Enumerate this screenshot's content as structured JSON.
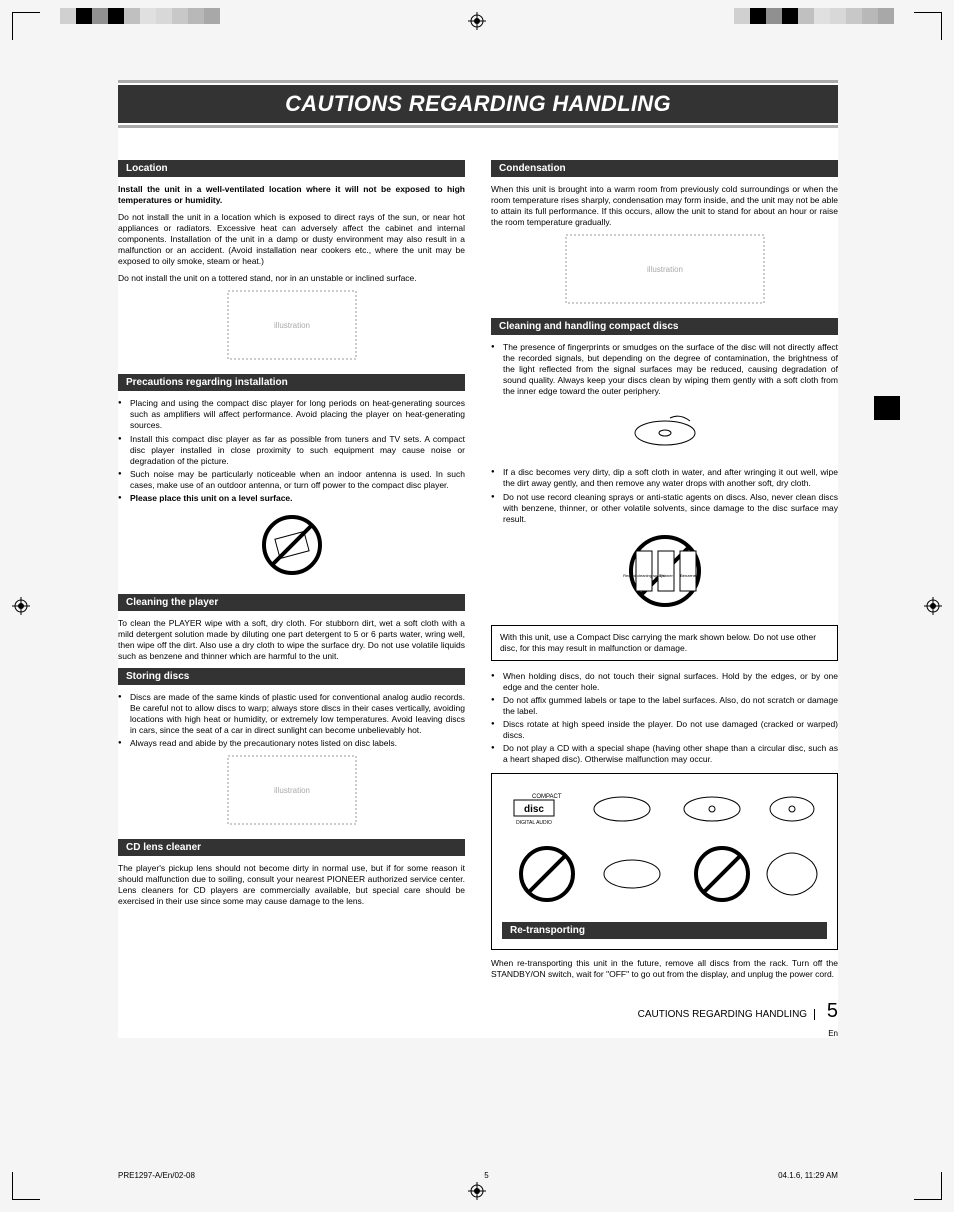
{
  "page": {
    "title": "CAUTIONS REGARDING HANDLING",
    "footer_label": "CAUTIONS REGARDING HANDLING",
    "page_number": "5",
    "lang_mark": "En"
  },
  "meta": {
    "doc_id": "PRE1297-A/En/02-08",
    "sheet": "5",
    "timestamp": "04.1.6, 11:29 AM"
  },
  "color_bar": [
    "#d0d0d0",
    "#000000",
    "#909090",
    "#000000",
    "#c0c0c0",
    "#e0e0e0",
    "#d8d8d8",
    "#c8c8c8",
    "#b8b8b8",
    "#a8a8a8"
  ],
  "left": {
    "location": {
      "header": "Location",
      "bold_intro": "Install the unit in a well-ventilated location where it will not be exposed to high temperatures or humidity.",
      "para1": "Do not install the unit in a location which is exposed to direct rays of the sun, or near hot appliances or radiators. Excessive heat can adversely affect the cabinet and internal components.  Installation of the unit in a damp or dusty environment may also result in a malfunction or an accident.  (Avoid installation near cookers etc., where the unit may be exposed to oily smoke, steam or heat.)",
      "para2": "Do not install the unit on a tottered stand, nor in an unstable or inclined surface."
    },
    "precautions": {
      "header": "Precautions regarding installation",
      "items": [
        "Placing and using the compact disc player for long periods on heat-generating sources such as amplifiers will affect performance. Avoid placing the player on heat-generating sources.",
        "Install this compact disc player as far as possible from tuners and TV sets. A compact disc player installed in close proximity to such equipment may cause noise or degradation of the picture.",
        "Such noise may be particularly noticeable when an indoor antenna is used. In such  cases, make use of an outdoor antenna, or turn off power to the compact disc player."
      ],
      "last_bold": "Please place this unit on a level surface."
    },
    "cleaning_player": {
      "header": "Cleaning the player",
      "para": "To clean the PLAYER wipe with a soft, dry cloth. For stubborn dirt, wet a soft cloth with a mild detergent solution made by diluting one part detergent to 5 or 6 parts water, wring well, then wipe off the dirt. Also use a dry cloth to wipe the surface dry. Do not use volatile liquids such as benzene and thinner which are harmful to the unit."
    },
    "storing": {
      "header": "Storing discs",
      "items": [
        "Discs are made of the same kinds of plastic used for conventional analog audio records. Be careful not to allow discs to warp; always store discs in their cases vertically, avoiding locations with high heat or humidity, or extremely low temperatures. Avoid leaving discs in cars, since the seat of a car in direct sunlight can become unbelievably hot.",
        "Always read and abide by the precautionary notes listed on disc labels."
      ]
    },
    "lens": {
      "header": "CD lens cleaner",
      "para": "The player's pickup lens should not become dirty in normal use, but if for some reason it should malfunction due to soiling, consult your nearest PIONEER authorized service center.   Lens cleaners for CD players are commercially available, but special care should be exercised in their use since some may cause damage to the lens."
    }
  },
  "right": {
    "condensation": {
      "header": "Condensation",
      "para": "When this unit is brought into a warm room from previously cold surroundings or when the room temperature rises sharply, condensation may form inside, and the unit may not be able to attain its full performance. If this occurs, allow the unit to stand for about an hour or raise the room temperature gradually."
    },
    "cleaning_discs": {
      "header": "Cleaning and handling compact discs",
      "item1": "The presence of fingerprints or smudges on the surface of the disc will not directly affect the recorded signals, but depending on the degree of contamination, the brightness of the light reflected from the signal surfaces may be reduced, causing degradation of sound quality. Always keep your discs clean by wiping them gently with a soft cloth from the inner edge toward the outer periphery.",
      "item2": "If a disc becomes very dirty, dip a soft cloth in water, and after wringing it out well, wipe the dirt away gently, and then remove any water drops with another soft, dry cloth.",
      "item3": "Do not use record cleaning sprays or anti-static agents on discs. Also, never clean discs with benzene, thinner, or other volatile solvents, since damage to the disc surface may result.",
      "bottle_labels": {
        "a": "Record cleaning sprays",
        "b": "Thinner",
        "c": "Benzene"
      },
      "note": "With this unit, use a Compact Disc carrying the mark shown below. Do not use other disc, for this may result in malfunction or damage.",
      "items_after": [
        "When holding discs, do not touch their signal surfaces. Hold by the edges, or by one edge and the center hole.",
        "Do not affix gummed labels or tape to the label surfaces. Also, do not scratch or damage the label.",
        "Discs rotate at high speed inside the player. Do not use damaged (cracked or warped) discs.",
        "Do not play a CD with a special shape (having other shape than a circular disc, such as a heart shaped disc). Otherwise malfunction may occur."
      ],
      "cd_logo": {
        "top": "COMPACT",
        "mid": "disc",
        "bot": "DIGITAL AUDIO"
      }
    },
    "retransport": {
      "header": "Re-transporting",
      "para": "When re-transporting this unit in the future, remove all discs from the rack.  Turn off the STANDBY/ON switch, wait for \"OFF\" to go out from the display, and unplug the power cord."
    }
  }
}
